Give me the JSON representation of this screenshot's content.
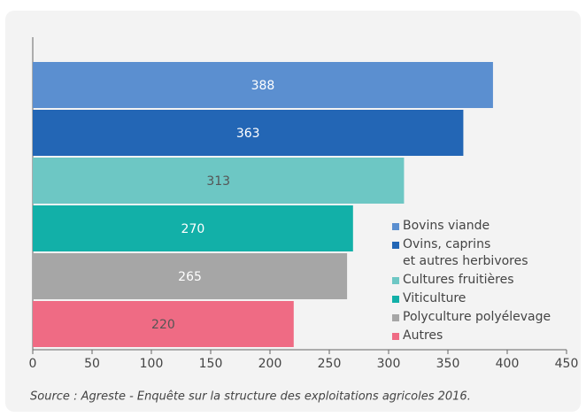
{
  "chart_data": {
    "type": "hbar",
    "categories": [
      "Bovins viande",
      "Ovins, caprins\net autres herbivores",
      "Cultures fruitières",
      "Viticulture",
      "Polyculture polyélevage",
      "Autres"
    ],
    "values": [
      388,
      363,
      313,
      270,
      265,
      220
    ],
    "colors": [
      "#5b8fd0",
      "#2366b5",
      "#6dc7c4",
      "#12b0a8",
      "#a6a6a6",
      "#ef6b84"
    ],
    "label_colors": [
      "#ffffff",
      "#ffffff",
      "#555555",
      "#ffffff",
      "#ffffff",
      "#555555"
    ],
    "xlim": [
      0,
      450
    ],
    "xticks": [
      0,
      50,
      100,
      150,
      200,
      250,
      300,
      350,
      400,
      450
    ],
    "legend": "lower right",
    "source": "Source : Agreste - Enquête sur la structure des exploitations agricoles 2016."
  }
}
